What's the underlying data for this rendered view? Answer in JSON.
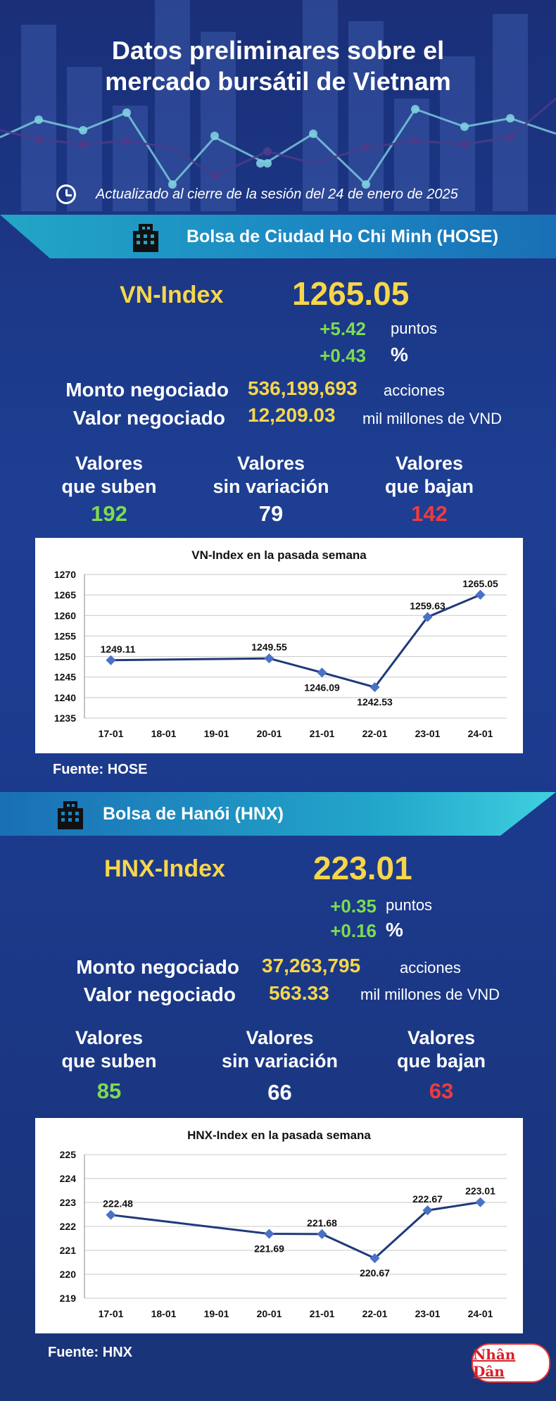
{
  "header": {
    "title_line1": "Datos preliminares sobre el",
    "title_line2": "mercado bursátil de Vietnam",
    "updated": "Actualizado al cierre de la sesión del 24 de enero de 2025",
    "clock_icon": "clock-icon"
  },
  "hose": {
    "banner": "Bolsa de Ciudad Ho Chi Minh (HOSE)",
    "index_name": "VN-Index",
    "index_value": "1265.05",
    "change_points": "+5.42",
    "points_unit": "puntos",
    "change_percent": "+0.43",
    "percent_unit": "%",
    "volume_label": "Monto negociado",
    "volume_value": "536,199,693",
    "volume_unit": "acciones",
    "value_label": "Valor negociado",
    "value_value": "12,209.03",
    "value_unit": "mil millones de VND",
    "up_label_1": "Valores",
    "up_label_2": "que suben",
    "up_count": "192",
    "flat_label_1": "Valores",
    "flat_label_2": "sin variación",
    "flat_count": "79",
    "down_label_1": "Valores",
    "down_label_2": "que bajan",
    "down_count": "142",
    "source": "Fuente: HOSE"
  },
  "hnx": {
    "banner": "Bolsa de Hanói (HNX)",
    "index_name": "HNX-Index",
    "index_value": "223.01",
    "change_points": "+0.35",
    "points_unit": "puntos",
    "change_percent": "+0.16",
    "percent_unit": "%",
    "volume_label": "Monto negociado",
    "volume_value": "37,263,795",
    "volume_unit": "acciones",
    "value_label": "Valor negociado",
    "value_value": "563.33",
    "value_unit": "mil millones de VND",
    "up_label_1": "Valores",
    "up_label_2": "que suben",
    "up_count": "85",
    "flat_label_1": "Valores",
    "flat_label_2": "sin variación",
    "flat_count": "66",
    "down_label_1": "Valores",
    "down_label_2": "que bajan",
    "down_count": "63",
    "source": "Fuente:  HNX"
  },
  "logo_text": "Nhân Dân",
  "colors": {
    "accent": "#f7d64a",
    "up": "#7ddc4f",
    "down": "#ef3b3b",
    "line": "#1f3a7a"
  },
  "chart_data": [
    {
      "type": "line",
      "title": "VN-Index en la pasada semana",
      "categories": [
        "17-01",
        "18-01",
        "19-01",
        "20-01",
        "21-01",
        "22-01",
        "23-01",
        "24-01"
      ],
      "points": [
        {
          "x": "17-01",
          "y": 1249.11,
          "label": "1249.11"
        },
        {
          "x": "20-01",
          "y": 1249.55,
          "label": "1249.55"
        },
        {
          "x": "21-01",
          "y": 1246.09,
          "label": "1246.09"
        },
        {
          "x": "22-01",
          "y": 1242.53,
          "label": "1242.53"
        },
        {
          "x": "23-01",
          "y": 1259.63,
          "label": "1259.63"
        },
        {
          "x": "24-01",
          "y": 1265.05,
          "label": "1265.05"
        }
      ],
      "ylim": [
        1235,
        1270
      ],
      "yticks": [
        1235,
        1240,
        1245,
        1250,
        1255,
        1260,
        1265,
        1270
      ],
      "grid": true
    },
    {
      "type": "line",
      "title": "HNX-Index en la pasada semana",
      "categories": [
        "17-01",
        "18-01",
        "19-01",
        "20-01",
        "21-01",
        "22-01",
        "23-01",
        "24-01"
      ],
      "points": [
        {
          "x": "17-01",
          "y": 222.48,
          "label": "222.48"
        },
        {
          "x": "20-01",
          "y": 221.69,
          "label": "221.69"
        },
        {
          "x": "21-01",
          "y": 221.68,
          "label": "221.68"
        },
        {
          "x": "22-01",
          "y": 220.67,
          "label": "220.67"
        },
        {
          "x": "23-01",
          "y": 222.67,
          "label": "222.67"
        },
        {
          "x": "24-01",
          "y": 223.01,
          "label": "223.01"
        }
      ],
      "ylim": [
        219,
        225
      ],
      "yticks": [
        219,
        220,
        221,
        222,
        223,
        224,
        225
      ],
      "grid": true
    }
  ]
}
